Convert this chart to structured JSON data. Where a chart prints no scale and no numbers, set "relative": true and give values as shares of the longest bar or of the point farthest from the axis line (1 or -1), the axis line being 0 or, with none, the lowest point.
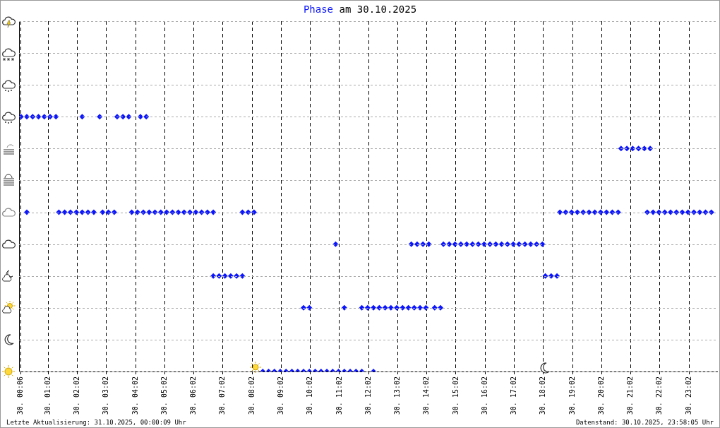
{
  "chart_data": {
    "type": "scatter",
    "title": "Phase am 30.10.2025",
    "relative": true,
    "marker": "diamond",
    "grid": "x",
    "legend": false,
    "xlim": [
      "2025-10-30T00:02",
      "2025-10-31T00:00"
    ],
    "xticks": [
      {
        "value": "2025-10-30T00:06",
        "label": "30. 00:06"
      },
      {
        "value": "2025-10-30T01:02",
        "label": "30. 01:02"
      },
      {
        "value": "2025-10-30T02:02",
        "label": "30. 02:02"
      },
      {
        "value": "2025-10-30T03:02",
        "label": "30. 03:02"
      },
      {
        "value": "2025-10-30T04:02",
        "label": "30. 04:02"
      },
      {
        "value": "2025-10-30T05:02",
        "label": "30. 05:02"
      },
      {
        "value": "2025-10-30T06:02",
        "label": "30. 06:02"
      },
      {
        "value": "2025-10-30T07:02",
        "label": "30. 07:02"
      },
      {
        "value": "2025-10-30T08:02",
        "label": "30. 08:02"
      },
      {
        "value": "2025-10-30T09:02",
        "label": "30. 09:02"
      },
      {
        "value": "2025-10-30T10:02",
        "label": "30. 10:02"
      },
      {
        "value": "2025-10-30T11:02",
        "label": "30. 11:02"
      },
      {
        "value": "2025-10-30T12:02",
        "label": "30. 12:02"
      },
      {
        "value": "2025-10-30T13:02",
        "label": "30. 13:02"
      },
      {
        "value": "2025-10-30T14:02",
        "label": "30. 14:02"
      },
      {
        "value": "2025-10-30T15:02",
        "label": "30. 15:02"
      },
      {
        "value": "2025-10-30T16:02",
        "label": "30. 16:02"
      },
      {
        "value": "2025-10-30T17:02",
        "label": "30. 17:02"
      },
      {
        "value": "2025-10-30T18:02",
        "label": "30. 18:02"
      },
      {
        "value": "2025-10-30T19:02",
        "label": "30. 19:02"
      },
      {
        "value": "2025-10-30T20:02",
        "label": "30. 20:02"
      },
      {
        "value": "2025-10-30T21:02",
        "label": "30. 21:02"
      },
      {
        "value": "2025-10-30T22:02",
        "label": "30. 22:02"
      },
      {
        "value": "2025-10-30T23:02",
        "label": "30. 23:02"
      }
    ],
    "series": [
      {
        "color": "#0a14ff",
        "x": [
          "2025-10-30T00:06",
          "2025-10-30T00:18",
          "2025-10-30T00:30",
          "2025-10-30T00:42",
          "2025-10-30T00:54",
          "2025-10-30T01:06",
          "2025-10-30T01:18",
          "2025-10-30T02:12",
          "2025-10-30T02:48",
          "2025-10-30T03:24",
          "2025-10-30T03:36",
          "2025-10-30T03:48",
          "2025-10-30T04:12",
          "2025-10-30T04:24",
          "2025-10-30T00:18",
          "2025-10-30T01:24",
          "2025-10-30T01:36",
          "2025-10-30T01:48",
          "2025-10-30T02:00",
          "2025-10-30T02:12",
          "2025-10-30T02:24",
          "2025-10-30T02:36",
          "2025-10-30T02:54",
          "2025-10-30T03:06",
          "2025-10-30T03:18",
          "2025-10-30T03:54",
          "2025-10-30T04:06",
          "2025-10-30T04:18",
          "2025-10-30T04:30",
          "2025-10-30T04:42",
          "2025-10-30T04:54",
          "2025-10-30T05:06",
          "2025-10-30T05:18",
          "2025-10-30T05:30",
          "2025-10-30T05:42",
          "2025-10-30T05:54",
          "2025-10-30T06:06",
          "2025-10-30T06:18",
          "2025-10-30T06:30",
          "2025-10-30T06:42",
          "2025-10-30T07:42",
          "2025-10-30T07:54",
          "2025-10-30T08:06",
          "2025-10-30T18:36",
          "2025-10-30T18:48",
          "2025-10-30T19:00",
          "2025-10-30T19:12",
          "2025-10-30T19:24",
          "2025-10-30T19:36",
          "2025-10-30T19:48",
          "2025-10-30T20:00",
          "2025-10-30T20:12",
          "2025-10-30T20:24",
          "2025-10-30T20:36",
          "2025-10-30T21:36",
          "2025-10-30T21:48",
          "2025-10-30T22:00",
          "2025-10-30T22:12",
          "2025-10-30T22:24",
          "2025-10-30T22:36",
          "2025-10-30T22:48",
          "2025-10-30T23:00",
          "2025-10-30T23:12",
          "2025-10-30T23:24",
          "2025-10-30T23:36",
          "2025-10-30T23:48",
          "2025-10-30T06:42",
          "2025-10-30T06:54",
          "2025-10-30T07:06",
          "2025-10-30T07:18",
          "2025-10-30T07:30",
          "2025-10-30T07:42",
          "2025-10-30T18:06",
          "2025-10-30T18:18",
          "2025-10-30T18:30",
          "2025-10-30T08:24",
          "2025-10-30T08:36",
          "2025-10-30T08:48",
          "2025-10-30T09:00",
          "2025-10-30T09:12",
          "2025-10-30T09:24",
          "2025-10-30T09:36",
          "2025-10-30T09:48",
          "2025-10-30T10:00",
          "2025-10-30T10:12",
          "2025-10-30T10:24",
          "2025-10-30T10:36",
          "2025-10-30T10:48",
          "2025-10-30T11:00",
          "2025-10-30T11:12",
          "2025-10-30T11:24",
          "2025-10-30T11:36",
          "2025-10-30T11:48",
          "2025-10-30T12:12",
          "2025-10-30T09:48",
          "2025-10-30T10:00",
          "2025-10-30T11:12",
          "2025-10-30T11:48",
          "2025-10-30T12:00",
          "2025-10-30T12:12",
          "2025-10-30T12:24",
          "2025-10-30T12:36",
          "2025-10-30T12:48",
          "2025-10-30T13:00",
          "2025-10-30T13:12",
          "2025-10-30T13:24",
          "2025-10-30T13:36",
          "2025-10-30T13:48",
          "2025-10-30T14:00",
          "2025-10-30T14:18",
          "2025-10-30T14:30",
          "2025-10-30T10:54",
          "2025-10-30T13:30",
          "2025-10-30T13:42",
          "2025-10-30T13:54",
          "2025-10-30T14:06",
          "2025-10-30T14:36",
          "2025-10-30T14:48",
          "2025-10-30T15:00",
          "2025-10-30T15:12",
          "2025-10-30T15:24",
          "2025-10-30T15:36",
          "2025-10-30T15:48",
          "2025-10-30T16:00",
          "2025-10-30T16:12",
          "2025-10-30T16:24",
          "2025-10-30T16:36",
          "2025-10-30T16:48",
          "2025-10-30T17:00",
          "2025-10-30T17:12",
          "2025-10-30T17:24",
          "2025-10-30T17:36",
          "2025-10-30T17:48",
          "2025-10-30T18:00",
          "2025-10-30T20:42",
          "2025-10-30T20:54",
          "2025-10-30T21:06",
          "2025-10-30T21:18",
          "2025-10-30T21:30",
          "2025-10-30T21:42"
        ],
        "values": [
          1,
          1,
          1,
          1,
          1,
          1,
          1,
          1,
          1,
          1,
          1,
          1,
          1,
          1,
          0.625,
          0.625,
          0.625,
          0.625,
          0.625,
          0.625,
          0.625,
          0.625,
          0.625,
          0.625,
          0.625,
          0.625,
          0.625,
          0.625,
          0.625,
          0.625,
          0.625,
          0.625,
          0.625,
          0.625,
          0.625,
          0.625,
          0.625,
          0.625,
          0.625,
          0.625,
          0.625,
          0.625,
          0.625,
          0.625,
          0.625,
          0.625,
          0.625,
          0.625,
          0.625,
          0.625,
          0.625,
          0.625,
          0.625,
          0.625,
          0.625,
          0.625,
          0.625,
          0.625,
          0.625,
          0.625,
          0.625,
          0.625,
          0.625,
          0.625,
          0.625,
          0.625,
          0.375,
          0.375,
          0.375,
          0.375,
          0.375,
          0.375,
          0.375,
          0.375,
          0.375,
          0,
          0,
          0,
          0,
          0,
          0,
          0,
          0,
          0,
          0,
          0,
          0,
          0,
          0,
          0,
          0,
          0,
          0,
          0,
          0.25,
          0.25,
          0.25,
          0.25,
          0.25,
          0.25,
          0.25,
          0.25,
          0.25,
          0.25,
          0.25,
          0.25,
          0.25,
          0.25,
          0.25,
          0.25,
          0.25,
          0.5,
          0.5,
          0.5,
          0.5,
          0.5,
          0.5,
          0.5,
          0.5,
          0.5,
          0.5,
          0.5,
          0.5,
          0.5,
          0.5,
          0.5,
          0.5,
          0.5,
          0.5,
          0.5,
          0.5,
          0.5,
          0.5,
          0.5,
          0.875,
          0.875,
          0.875,
          0.875,
          0.875,
          0.875
        ]
      }
    ],
    "annotations": [
      "Letzte Aktualisierung: 31.10.2025, 00:00:09 Uhr",
      "Datenstand: 30.10.2025, 23:58:05 Uhr"
    ]
  }
}
